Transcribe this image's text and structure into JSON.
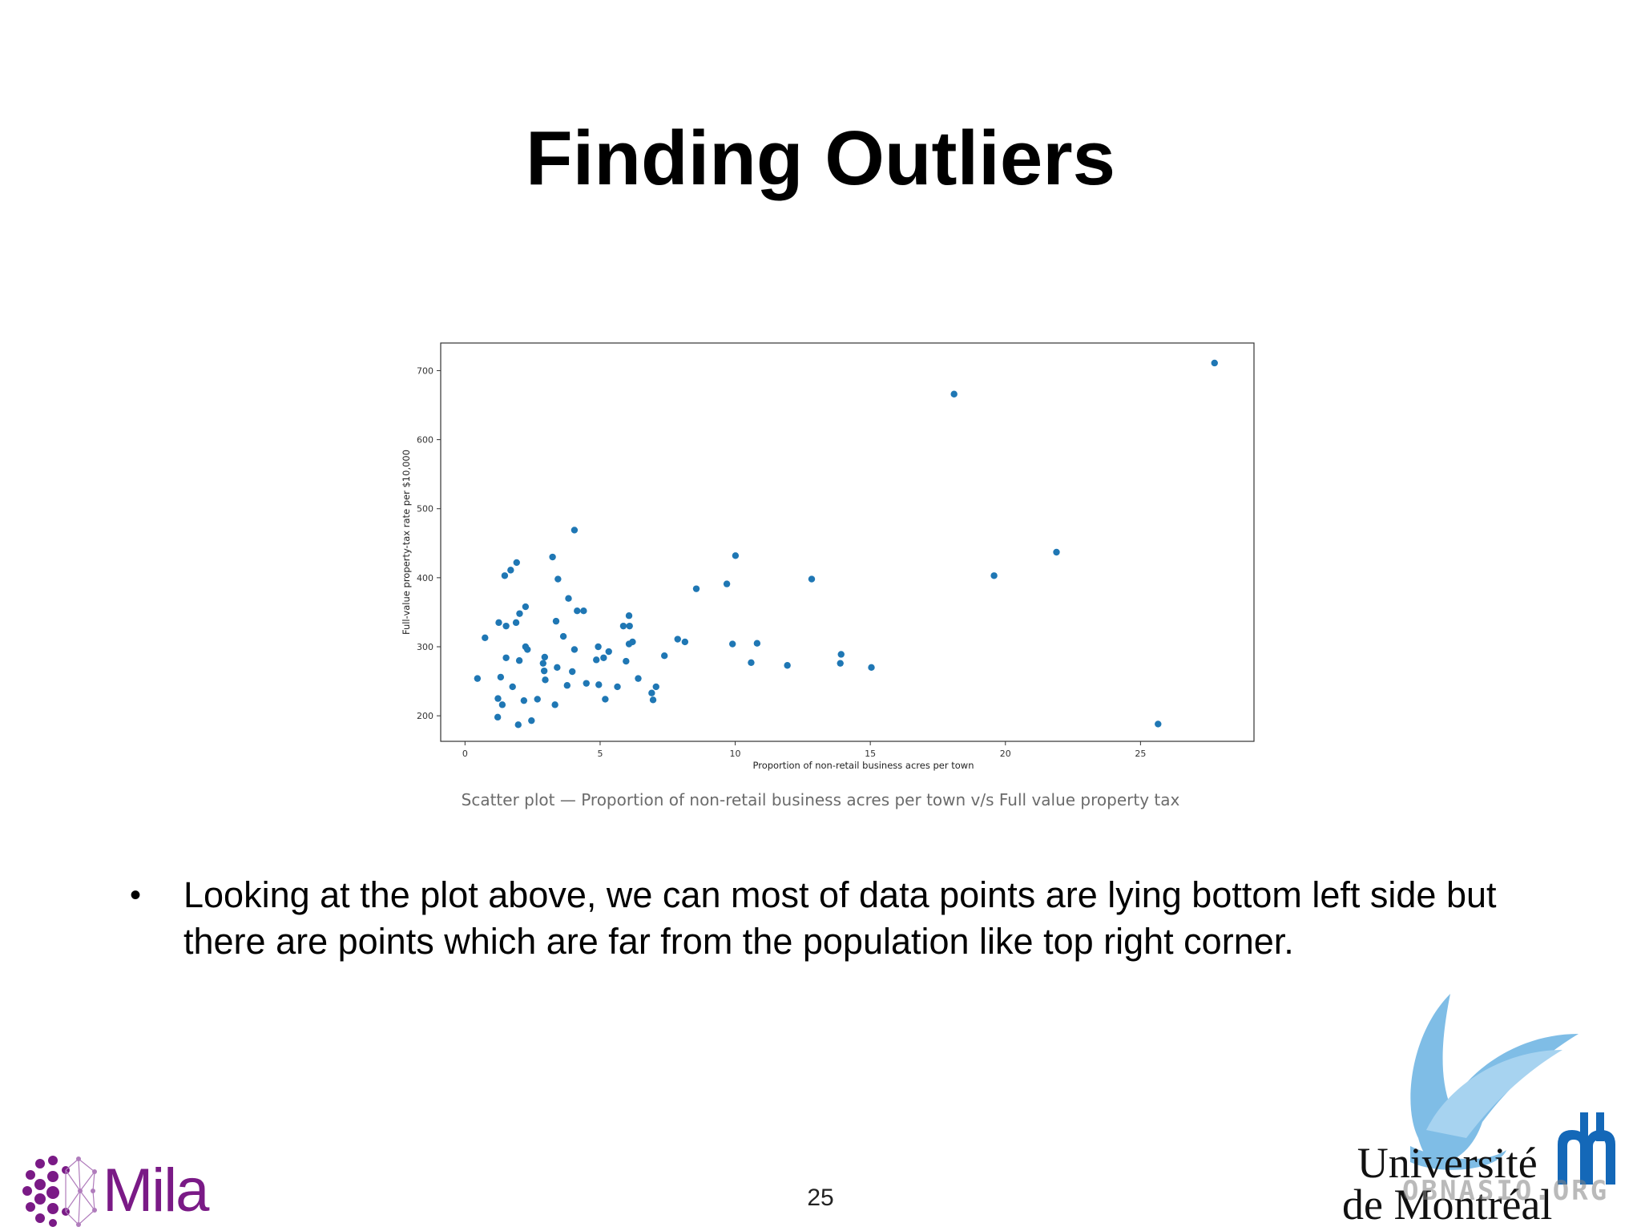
{
  "slide": {
    "title": "Finding Outliers",
    "caption": "Scatter plot — Proportion of non-retail business acres per town v/s Full value property tax",
    "bullets": [
      "Looking at the plot above, we can most of data points are lying bottom left side but there are points which are far from the population like top right corner."
    ],
    "page_number": "25"
  },
  "logos": {
    "left": "Mila",
    "right_line1": "Université",
    "right_line2": "de Montréal",
    "watermark": "OBNASIO.ORG"
  },
  "colors": {
    "marker": "#1f77b4",
    "mila_purple": "#7a1a86",
    "udem_blue": "#1468b8",
    "udem_bird": "#7fbde6"
  },
  "chart_data": {
    "type": "scatter",
    "xlabel": "Proportion of non-retail business acres per town",
    "ylabel": "Full-value property-tax rate per $10,000",
    "xlim": [
      -0.9,
      29.2
    ],
    "ylim": [
      163,
      740
    ],
    "xticks": [
      0,
      5,
      10,
      15,
      20,
      25
    ],
    "yticks": [
      200,
      300,
      400,
      500,
      600,
      700
    ],
    "grid": false,
    "points": [
      {
        "x": 0.46,
        "y": 254
      },
      {
        "x": 0.74,
        "y": 313
      },
      {
        "x": 1.22,
        "y": 225
      },
      {
        "x": 1.21,
        "y": 198
      },
      {
        "x": 1.25,
        "y": 335
      },
      {
        "x": 1.32,
        "y": 256
      },
      {
        "x": 1.38,
        "y": 216
      },
      {
        "x": 1.47,
        "y": 403
      },
      {
        "x": 1.52,
        "y": 330
      },
      {
        "x": 1.52,
        "y": 284
      },
      {
        "x": 1.69,
        "y": 411
      },
      {
        "x": 1.76,
        "y": 242
      },
      {
        "x": 1.89,
        "y": 335
      },
      {
        "x": 1.91,
        "y": 422
      },
      {
        "x": 1.97,
        "y": 187
      },
      {
        "x": 2.01,
        "y": 280
      },
      {
        "x": 2.02,
        "y": 348
      },
      {
        "x": 2.18,
        "y": 222
      },
      {
        "x": 2.24,
        "y": 358
      },
      {
        "x": 2.24,
        "y": 300
      },
      {
        "x": 2.31,
        "y": 296
      },
      {
        "x": 2.46,
        "y": 193
      },
      {
        "x": 2.68,
        "y": 224
      },
      {
        "x": 2.89,
        "y": 276
      },
      {
        "x": 2.93,
        "y": 265
      },
      {
        "x": 2.95,
        "y": 285
      },
      {
        "x": 2.97,
        "y": 252
      },
      {
        "x": 3.24,
        "y": 430
      },
      {
        "x": 3.33,
        "y": 216
      },
      {
        "x": 3.37,
        "y": 337
      },
      {
        "x": 3.41,
        "y": 270
      },
      {
        "x": 3.44,
        "y": 398
      },
      {
        "x": 3.64,
        "y": 315
      },
      {
        "x": 3.78,
        "y": 244
      },
      {
        "x": 3.83,
        "y": 370
      },
      {
        "x": 3.97,
        "y": 264
      },
      {
        "x": 4.05,
        "y": 469
      },
      {
        "x": 4.05,
        "y": 296
      },
      {
        "x": 4.15,
        "y": 352
      },
      {
        "x": 4.39,
        "y": 352
      },
      {
        "x": 4.49,
        "y": 247
      },
      {
        "x": 4.86,
        "y": 281
      },
      {
        "x": 4.93,
        "y": 300
      },
      {
        "x": 4.95,
        "y": 245
      },
      {
        "x": 5.13,
        "y": 284
      },
      {
        "x": 5.19,
        "y": 224
      },
      {
        "x": 5.32,
        "y": 293
      },
      {
        "x": 5.64,
        "y": 242
      },
      {
        "x": 5.86,
        "y": 330
      },
      {
        "x": 5.96,
        "y": 279
      },
      {
        "x": 6.07,
        "y": 304
      },
      {
        "x": 6.07,
        "y": 345
      },
      {
        "x": 6.09,
        "y": 330
      },
      {
        "x": 6.2,
        "y": 307
      },
      {
        "x": 6.41,
        "y": 254
      },
      {
        "x": 6.91,
        "y": 233
      },
      {
        "x": 6.96,
        "y": 223
      },
      {
        "x": 7.07,
        "y": 242
      },
      {
        "x": 7.38,
        "y": 287
      },
      {
        "x": 7.87,
        "y": 311
      },
      {
        "x": 8.14,
        "y": 307
      },
      {
        "x": 8.56,
        "y": 384
      },
      {
        "x": 9.69,
        "y": 391
      },
      {
        "x": 9.9,
        "y": 304
      },
      {
        "x": 10.01,
        "y": 432
      },
      {
        "x": 10.59,
        "y": 277
      },
      {
        "x": 10.81,
        "y": 305
      },
      {
        "x": 11.93,
        "y": 273
      },
      {
        "x": 12.83,
        "y": 398
      },
      {
        "x": 13.89,
        "y": 276
      },
      {
        "x": 13.92,
        "y": 289
      },
      {
        "x": 15.04,
        "y": 270
      },
      {
        "x": 18.1,
        "y": 666
      },
      {
        "x": 19.58,
        "y": 403
      },
      {
        "x": 21.89,
        "y": 437
      },
      {
        "x": 25.65,
        "y": 188
      },
      {
        "x": 27.74,
        "y": 711
      }
    ]
  }
}
